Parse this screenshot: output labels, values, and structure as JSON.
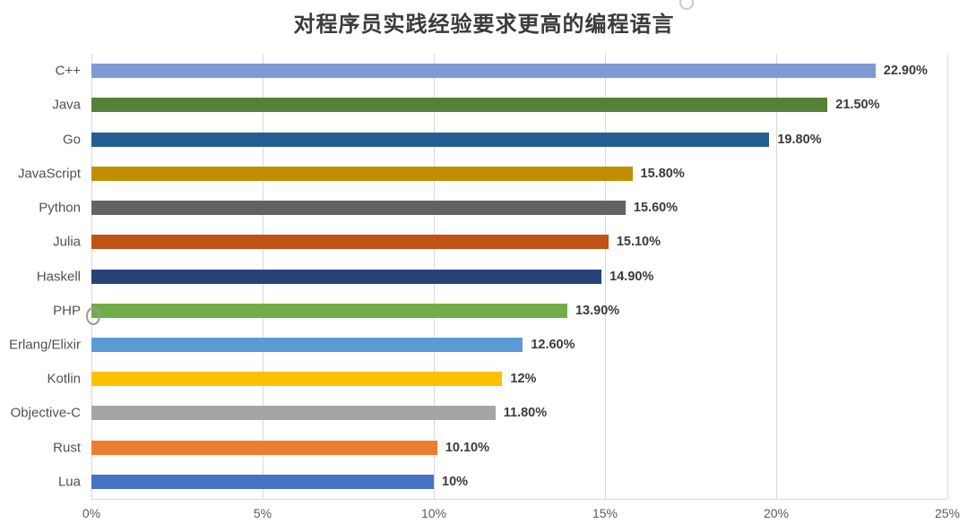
{
  "title": "对程序员实践经验要求更高的编程语言",
  "chart_data": {
    "type": "bar",
    "orientation": "horizontal",
    "title": "对程序员实践经验要求更高的编程语言",
    "categories": [
      "C++",
      "Java",
      "Go",
      "JavaScript",
      "Python",
      "Julia",
      "Haskell",
      "PHP",
      "Erlang/Elixir",
      "Kotlin",
      "Objective-C",
      "Rust",
      "Lua"
    ],
    "values": [
      22.9,
      21.5,
      19.8,
      15.8,
      15.6,
      15.1,
      14.9,
      13.9,
      12.6,
      12,
      11.8,
      10.1,
      10
    ],
    "value_labels": [
      "22.90%",
      "21.50%",
      "19.80%",
      "15.80%",
      "15.60%",
      "15.10%",
      "14.90%",
      "13.90%",
      "12.60%",
      "12%",
      "11.80%",
      "10.10%",
      "10%"
    ],
    "bar_colors": [
      "#7d9bd4",
      "#548235",
      "#255e91",
      "#bf8f00",
      "#636363",
      "#c05316",
      "#264478",
      "#70ad47",
      "#5b9bd5",
      "#ffc000",
      "#a5a5a5",
      "#ed7d31",
      "#4472c4"
    ],
    "x_ticks": [
      "0%",
      "5%",
      "10%",
      "15%",
      "20%",
      "25%"
    ],
    "xlim": [
      0,
      25
    ],
    "grid": true,
    "gridline_color": "#d9d9d9",
    "legend": "none"
  }
}
